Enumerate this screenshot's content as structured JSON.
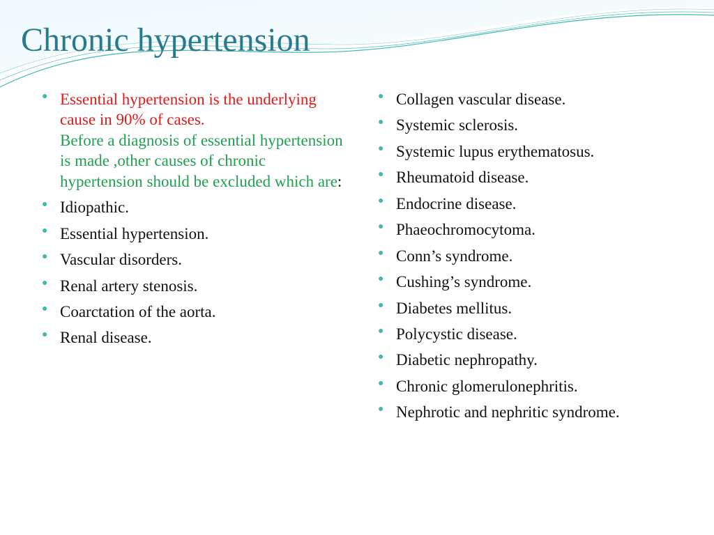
{
  "title": {
    "text": "Chronic hypertension",
    "color": "#2a7a8c"
  },
  "bullet_color": "#3fb8b0",
  "text_color": "#111111",
  "intro": {
    "red": {
      "text": "Essential hypertension is the underlying cause in 90% of cases.",
      "color": "#e01b1b"
    },
    "green": {
      "text": "Before a diagnosis of essential hypertension is made ,other causes of chronic hypertension should be excluded which are",
      "color": "#1fa050"
    },
    "colon": {
      "text": ":",
      "color": "#111111"
    }
  },
  "left_items": [
    "Idiopathic.",
    "Essential hypertension.",
    "Vascular disorders.",
    "Renal artery stenosis.",
    "Coarctation of the aorta.",
    "Renal disease."
  ],
  "right_items": [
    "Collagen vascular disease.",
    "Systemic sclerosis.",
    "Systemic lupus erythematosus.",
    "Rheumatoid disease.",
    "Endocrine disease.",
    "Phaeochromocytoma.",
    "Conn’s syndrome.",
    "Cushing’s syndrome.",
    "Diabetes mellitus.",
    "Polycystic disease.",
    "Diabetic nephropathy.",
    "Chronic glomerulonephritis.",
    "Nephrotic and nephritic syndrome."
  ],
  "wave": {
    "gradient_from": "#8fd8e8",
    "gradient_to": "#d8f2f7",
    "stroke": "#3fb8b0"
  },
  "body_fontsize": 23,
  "title_fontsize": 48
}
